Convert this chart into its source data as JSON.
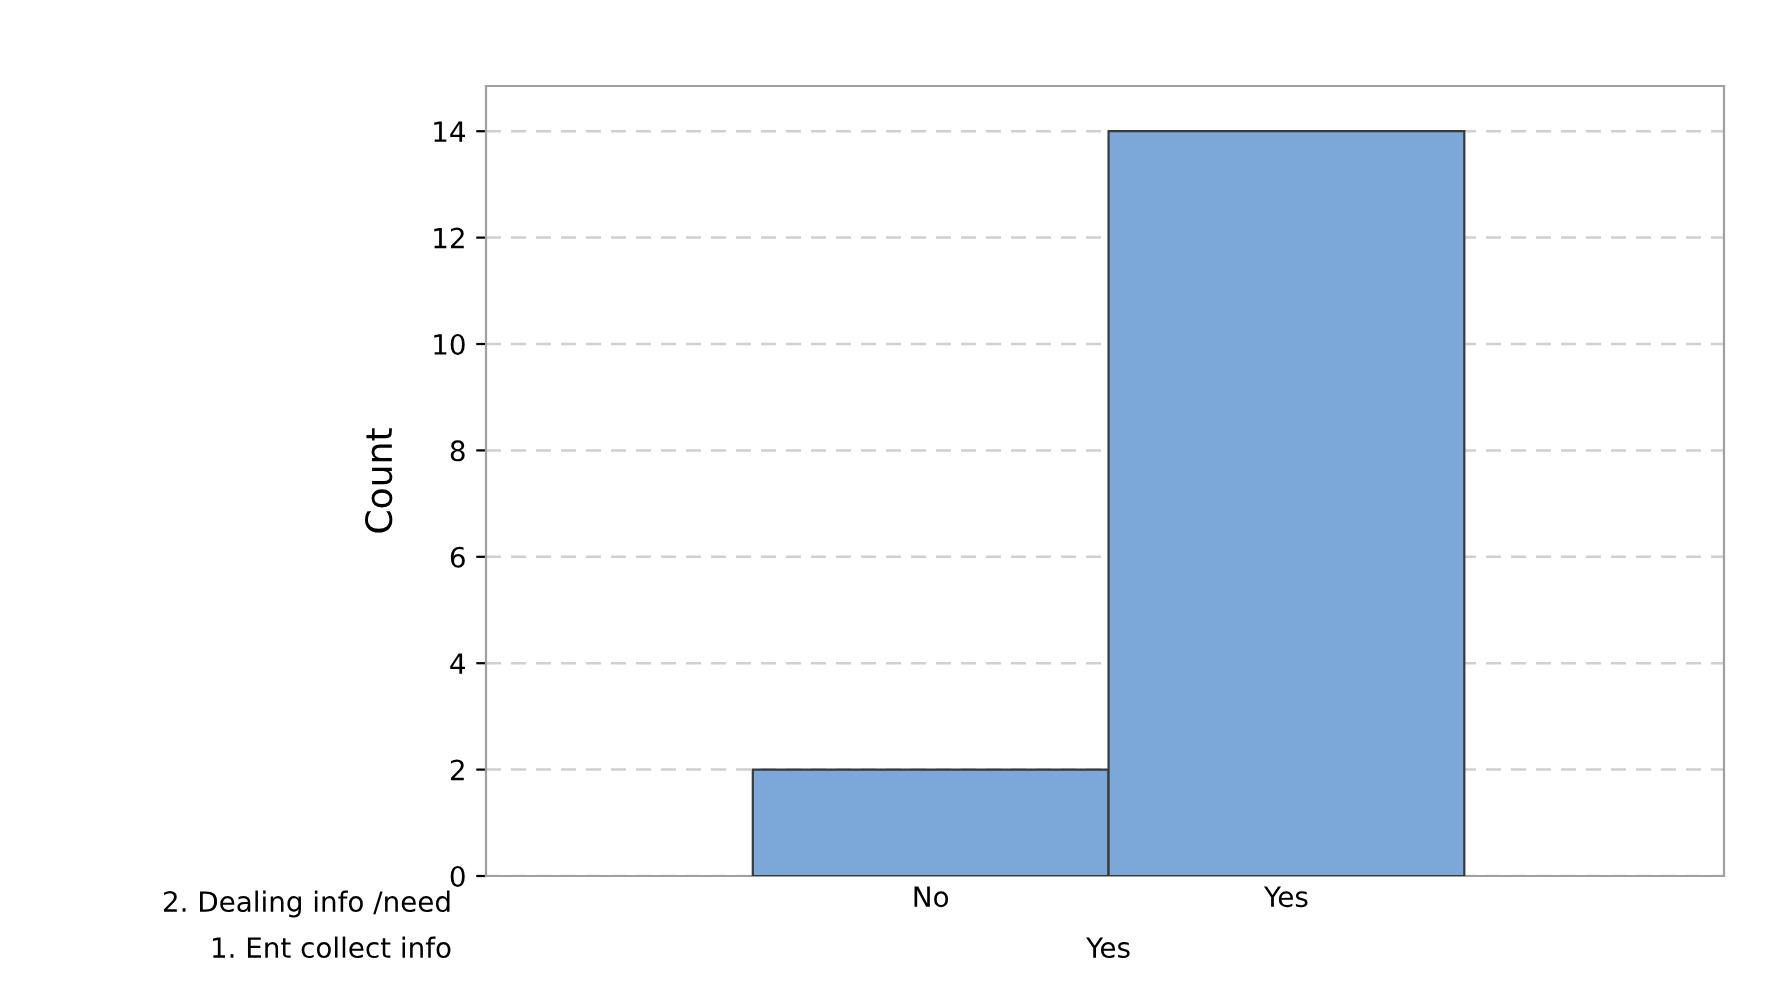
{
  "chart_data": {
    "type": "bar",
    "ylabel": "Count",
    "categories": [
      "No",
      "Yes"
    ],
    "values": [
      2,
      14
    ],
    "color": "#7ba7d9",
    "ylim": [
      0,
      14.85
    ],
    "yticks": [
      0,
      2,
      4,
      6,
      8,
      10,
      12,
      14
    ],
    "grid": "y",
    "annotations": [
      "2. Dealing info /need",
      "1. Ent collect info",
      "Yes"
    ]
  }
}
